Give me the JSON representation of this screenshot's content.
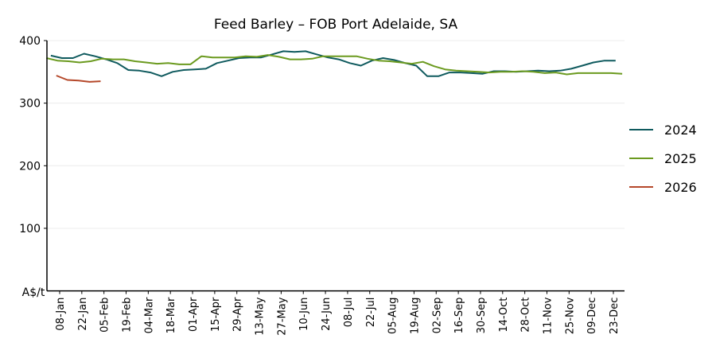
{
  "chart_data": {
    "type": "line",
    "title": "Feed Barley – FOB Port Adelaide, SA",
    "ylabel": "A$/t",
    "xlabel": "",
    "ylim": [
      0,
      400
    ],
    "yticks": [
      100,
      200,
      300,
      400
    ],
    "grid": "horizontal",
    "legend_position": "right",
    "x_unit": "week index (0 = 08-Jan)",
    "xlim": [
      -1.6,
      51.1
    ],
    "xtick_labels": [
      "08-Jan",
      "22-Jan",
      "05-Feb",
      "19-Feb",
      "04-Mar",
      "18-Mar",
      "01-Apr",
      "15-Apr",
      "29-Apr",
      "13-May",
      "27-May",
      "10-Jun",
      "24-Jun",
      "08-Jul",
      "22-Jul",
      "05-Aug",
      "19-Aug",
      "02-Sep",
      "16-Sep",
      "30-Sep",
      "14-Oct",
      "28-Oct",
      "11-Nov",
      "25-Nov",
      "09-Dec",
      "23-Dec"
    ],
    "series": [
      {
        "name": "2024",
        "color": "#0f5a5e",
        "start_week": -0.8,
        "values": [
          376,
          372,
          372,
          379,
          375,
          370,
          364,
          353,
          352,
          349,
          343,
          350,
          353,
          354,
          355,
          364,
          368,
          372,
          373,
          373,
          378,
          383,
          382,
          383,
          378,
          373,
          370,
          364,
          360,
          368,
          372,
          369,
          364,
          360,
          343,
          343,
          349,
          349,
          348,
          347,
          351,
          351,
          350,
          351,
          352,
          351,
          352,
          355,
          360,
          365,
          368,
          368
        ]
      },
      {
        "name": "2025",
        "color": "#6b9a1f",
        "start_week": -1.2,
        "values": [
          372,
          368,
          367,
          365,
          367,
          371,
          370,
          370,
          367,
          365,
          363,
          364,
          362,
          362,
          375,
          373,
          373,
          373,
          375,
          374,
          377,
          374,
          370,
          370,
          371,
          375,
          375,
          375,
          375,
          371,
          368,
          367,
          365,
          363,
          366,
          359,
          354,
          352,
          351,
          350,
          349,
          350,
          350,
          351,
          350,
          348,
          349,
          346,
          348,
          348,
          348,
          348,
          347
        ]
      },
      {
        "name": "2026",
        "color": "#b5482a",
        "start_week": -0.3,
        "values": [
          344,
          337,
          336,
          334,
          335
        ]
      }
    ]
  }
}
